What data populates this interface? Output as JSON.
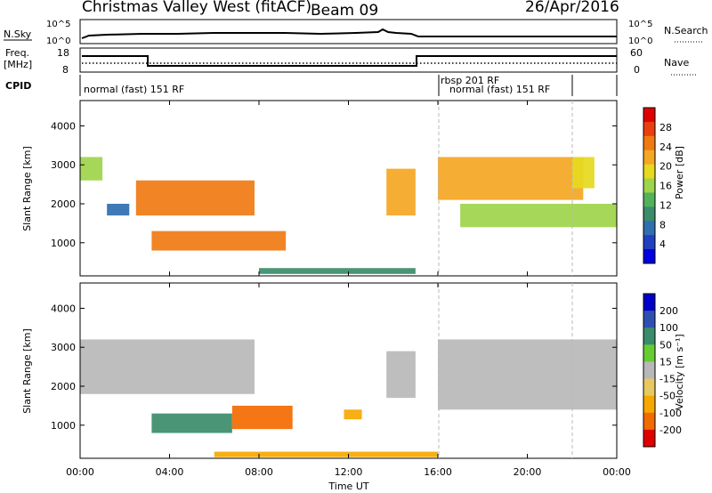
{
  "header": {
    "title": "Christmas Valley West (fitACF)",
    "beam": "Beam 09",
    "date": "26/Apr/2016"
  },
  "top_panels": {
    "nsky_label": "N.Sky",
    "nsearch_label": "N.Search",
    "nsky_ticks": [
      "10^5",
      "10^0"
    ],
    "nsearch_ticks": [
      "10^5",
      "10^0"
    ],
    "freq_label_1": "Freq.",
    "freq_label_2": "[MHz]",
    "freq_ticks": [
      "18",
      "8"
    ],
    "nave_label": "Nave",
    "nave_ticks": [
      "60",
      "0"
    ],
    "cpid_label": "CPID",
    "cpid_segments": [
      {
        "label": "normal (fast) 151 RF",
        "start": 0,
        "end": 16
      },
      {
        "label": "rbsp 201 RF",
        "start": 16,
        "end": 22
      },
      {
        "label": "normal (fast) 151 RF",
        "start": 16,
        "end": 24
      }
    ]
  },
  "power_colorbar": {
    "label": "Power [dB]",
    "ticks": [
      "28",
      "24",
      "20",
      "16",
      "12",
      "8",
      "4"
    ]
  },
  "velocity_colorbar": {
    "label": "Velocity [m s⁻¹]",
    "ticks": [
      "200",
      "100",
      "50",
      "15",
      "-15",
      "-50",
      "-100",
      "-200"
    ]
  },
  "chart_data": {
    "type": "heatmap",
    "xlabel": "Time UT",
    "x_ticks": [
      "00:00",
      "04:00",
      "08:00",
      "12:00",
      "16:00",
      "20:00",
      "00:00"
    ],
    "x_range_hours": [
      0,
      24
    ],
    "ylabel": "Slant Range [km]",
    "y_ticks": [
      1000,
      2000,
      3000,
      4000
    ],
    "y_range_km": [
      150,
      4650
    ],
    "panels": [
      {
        "name": "power",
        "units": "dB",
        "scale": [
          0,
          32
        ],
        "regions": [
          {
            "t0": 2.5,
            "t1": 7.8,
            "r0": 1700,
            "r1": 2600,
            "v": 27
          },
          {
            "t0": 3.2,
            "t1": 9.2,
            "r0": 800,
            "r1": 1300,
            "v": 26
          },
          {
            "t0": 0.0,
            "t1": 1.0,
            "r0": 2600,
            "r1": 3200,
            "v": 16
          },
          {
            "t0": 1.2,
            "t1": 2.2,
            "r0": 1700,
            "r1": 2000,
            "v": 6
          },
          {
            "t0": 13.7,
            "t1": 15.0,
            "r0": 1700,
            "r1": 2900,
            "v": 22
          },
          {
            "t0": 16.0,
            "t1": 22.5,
            "r0": 2100,
            "r1": 3200,
            "v": 22
          },
          {
            "t0": 17.0,
            "t1": 24.0,
            "r0": 1400,
            "r1": 2000,
            "v": 17
          },
          {
            "t0": 22.0,
            "t1": 23.0,
            "r0": 2400,
            "r1": 3200,
            "v": 20
          },
          {
            "t0": 8.0,
            "t1": 15.0,
            "r0": 200,
            "r1": 350,
            "v": 8
          }
        ]
      },
      {
        "name": "velocity",
        "units": "m/s",
        "scale": [
          -200,
          200
        ],
        "regions": [
          {
            "t0": 0.0,
            "t1": 7.8,
            "r0": 1800,
            "r1": 3200,
            "v": 0
          },
          {
            "t0": 3.2,
            "t1": 6.8,
            "r0": 800,
            "r1": 1300,
            "v": 50
          },
          {
            "t0": 6.8,
            "t1": 9.5,
            "r0": 900,
            "r1": 1500,
            "v": -80
          },
          {
            "t0": 13.7,
            "t1": 15.0,
            "r0": 1700,
            "r1": 2900,
            "v": 0
          },
          {
            "t0": 16.0,
            "t1": 24.0,
            "r0": 1400,
            "r1": 3200,
            "v": 0
          },
          {
            "t0": 11.8,
            "t1": 12.6,
            "r0": 1150,
            "r1": 1400,
            "v": -60
          },
          {
            "t0": 6.0,
            "t1": 16.0,
            "r0": 180,
            "r1": 320,
            "v": -40
          }
        ]
      }
    ]
  },
  "colors": {
    "frame": "#000000",
    "grid_dash": "#b8b8b8",
    "ground_scatter": "#b8b8b8"
  }
}
